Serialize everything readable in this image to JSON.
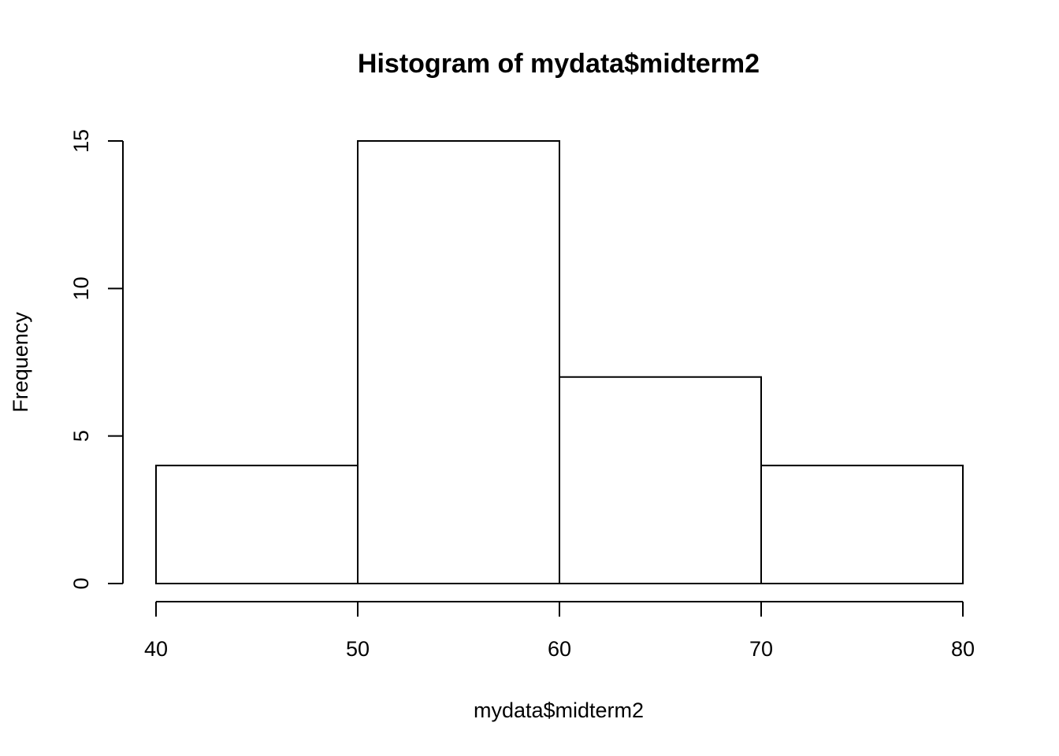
{
  "chart_data": {
    "type": "bar",
    "title": "Histogram of mydata$midterm2",
    "xlabel": "mydata$midterm2",
    "ylabel": "Frequency",
    "bins": [
      {
        "from": 40,
        "to": 50,
        "count": 4
      },
      {
        "from": 50,
        "to": 60,
        "count": 15
      },
      {
        "from": 60,
        "to": 70,
        "count": 7
      },
      {
        "from": 70,
        "to": 80,
        "count": 4
      }
    ],
    "xlim": [
      40,
      80
    ],
    "ylim": [
      0,
      15
    ],
    "x_ticks": [
      "40",
      "50",
      "60",
      "70",
      "80"
    ],
    "y_ticks": [
      "0",
      "5",
      "10",
      "15"
    ],
    "grid": false,
    "legend": "none",
    "bar_fill": "#ffffff",
    "bar_stroke": "#000000"
  }
}
